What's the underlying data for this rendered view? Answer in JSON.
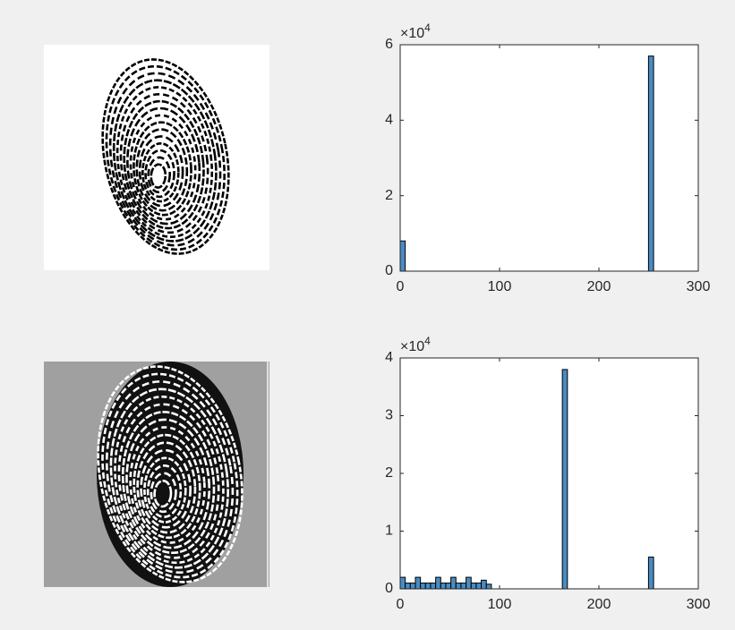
{
  "chart_data": [
    {
      "type": "histogram",
      "bins": [
        0,
        5.1,
        10.2,
        15.3,
        20.4,
        25.5,
        30.6,
        35.7,
        40.8,
        45.9,
        51,
        56.1,
        61.2,
        66.3,
        71.4,
        76.5,
        81.6,
        86.7,
        91.8,
        96.9,
        102,
        107.1,
        112.2,
        117.3,
        122.4,
        127.5,
        132.6,
        137.7,
        142.8,
        147.9,
        153,
        158.1,
        163.2,
        168.3,
        173.4,
        178.5,
        183.6,
        188.7,
        193.8,
        198.9,
        204,
        209.1,
        214.2,
        219.3,
        224.4,
        229.5,
        234.6,
        239.7,
        244.8,
        249.9,
        255
      ],
      "values": [
        8000,
        0,
        0,
        0,
        0,
        0,
        0,
        0,
        0,
        0,
        0,
        0,
        0,
        0,
        0,
        0,
        0,
        0,
        0,
        0,
        0,
        0,
        0,
        0,
        0,
        0,
        0,
        0,
        0,
        0,
        0,
        0,
        0,
        0,
        0,
        0,
        0,
        0,
        0,
        0,
        0,
        0,
        0,
        0,
        0,
        0,
        0,
        0,
        0,
        57000
      ],
      "color": "#4a8cc4",
      "xlim": [
        0,
        300
      ],
      "xticks": [
        0,
        100,
        200,
        300
      ],
      "ylim": [
        0,
        60000
      ],
      "yticks": [
        {
          "value": 0,
          "label": "0"
        },
        {
          "value": 20000,
          "label": "2"
        },
        {
          "value": 40000,
          "label": "4"
        },
        {
          "value": 60000,
          "label": "6"
        }
      ],
      "y_multiplier": {
        "base": "×10",
        "exponent": "4"
      }
    },
    {
      "type": "histogram",
      "bins": [
        0,
        5.1,
        10.2,
        15.3,
        20.4,
        25.5,
        30.6,
        35.7,
        40.8,
        45.9,
        51,
        56.1,
        61.2,
        66.3,
        71.4,
        76.5,
        81.6,
        86.7,
        91.8,
        96.9,
        102,
        107.1,
        112.2,
        117.3,
        122.4,
        127.5,
        132.6,
        137.7,
        142.8,
        147.9,
        153,
        158.1,
        163.2,
        168.3,
        173.4,
        178.5,
        183.6,
        188.7,
        193.8,
        198.9,
        204,
        209.1,
        214.2,
        219.3,
        224.4,
        229.5,
        234.6,
        239.7,
        244.8,
        249.9,
        255
      ],
      "values": [
        2000,
        1000,
        1000,
        2000,
        1000,
        1000,
        1000,
        2000,
        1000,
        1000,
        2000,
        1000,
        1000,
        2000,
        1000,
        1000,
        1500,
        800,
        0,
        0,
        0,
        0,
        0,
        0,
        0,
        0,
        0,
        0,
        0,
        0,
        0,
        0,
        38000,
        0,
        0,
        0,
        0,
        0,
        0,
        0,
        0,
        0,
        0,
        0,
        0,
        0,
        0,
        0,
        0,
        5500
      ],
      "color": "#4a8cc4",
      "xlim": [
        0,
        300
      ],
      "xticks": [
        0,
        100,
        200,
        300
      ],
      "ylim": [
        0,
        40000
      ],
      "yticks": [
        {
          "value": 0,
          "label": "0"
        },
        {
          "value": 10000,
          "label": "1"
        },
        {
          "value": 20000,
          "label": "2"
        },
        {
          "value": 30000,
          "label": "3"
        },
        {
          "value": 40000,
          "label": "4"
        }
      ],
      "y_multiplier": {
        "base": "×10",
        "exponent": "4"
      }
    }
  ]
}
